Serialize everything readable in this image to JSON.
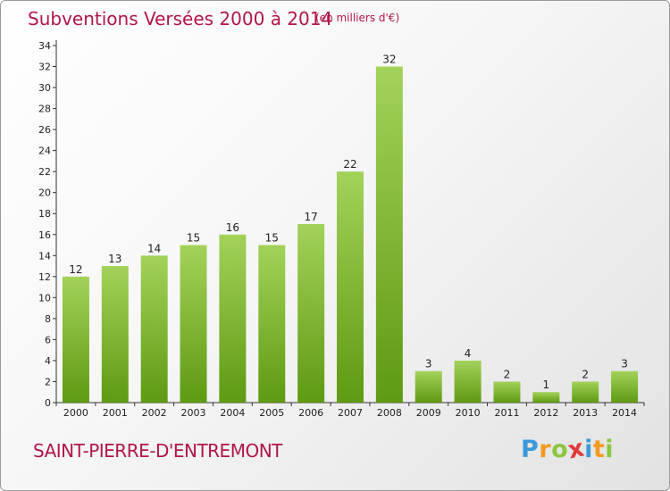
{
  "header": {
    "title": "Subventions Versées 2000 à 2014",
    "unit": "(en milliers d'€)"
  },
  "footer": {
    "commune": "SAINT-PIERRE-D'ENTREMONT",
    "logo_letters": [
      {
        "char": "P",
        "color": "#3a9ad9"
      },
      {
        "char": "r",
        "color": "#f29a1d"
      },
      {
        "char": "o",
        "color": "#8dc63f"
      },
      {
        "char": "x",
        "color": "#e03a3e"
      },
      {
        "char": "i",
        "color": "#3a9ad9"
      },
      {
        "char": "t",
        "color": "#f29a1d"
      },
      {
        "char": "i",
        "color": "#8dc63f"
      }
    ]
  },
  "chart_data": {
    "type": "bar",
    "categories": [
      "2000",
      "2001",
      "2002",
      "2003",
      "2004",
      "2005",
      "2006",
      "2007",
      "2008",
      "2009",
      "2010",
      "2011",
      "2012",
      "2013",
      "2014"
    ],
    "values": [
      12,
      13,
      14,
      15,
      16,
      15,
      17,
      22,
      32,
      3,
      4,
      2,
      1,
      2,
      3
    ],
    "data_labels": [
      "12",
      "13",
      "14",
      "15",
      "16",
      "15",
      "17",
      "22",
      "32",
      "3",
      "4",
      "2",
      "1",
      "2",
      "3"
    ],
    "title": "Subventions Versées 2000 à 2014",
    "unit_label": "(en milliers d'€)",
    "xlabel": "",
    "ylabel": "",
    "ylim": [
      0,
      34
    ],
    "yticks": [
      0,
      2,
      4,
      6,
      8,
      10,
      12,
      14,
      16,
      18,
      20,
      22,
      24,
      26,
      28,
      30,
      32,
      34
    ],
    "grid": false,
    "legend": "none",
    "bar_color_top": "#a3d25a",
    "bar_color_bottom": "#5e9a12"
  }
}
